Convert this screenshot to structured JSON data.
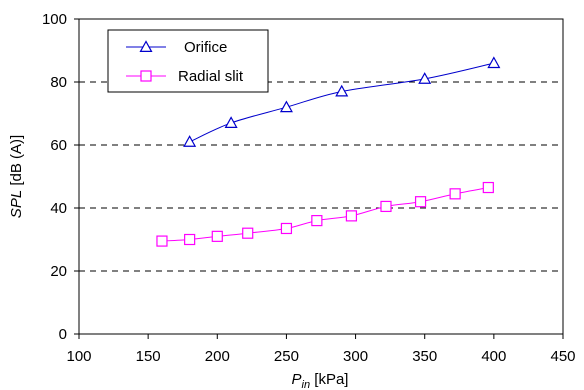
{
  "chart_data": {
    "type": "line",
    "xlabel": {
      "symbol": "P",
      "subscript": "in",
      "unit": "[kPa]"
    },
    "ylabel": {
      "symbol": "SPL",
      "unit": "[dB (A)]"
    },
    "xlim": [
      100,
      450
    ],
    "ylim": [
      0,
      100
    ],
    "xticks": [
      "100",
      "150",
      "200",
      "250",
      "300",
      "350",
      "400",
      "450"
    ],
    "yticks": [
      "0",
      "20",
      "40",
      "60",
      "80",
      "100"
    ],
    "grid": "horizontal dashed",
    "legend_position": "top-left",
    "series": [
      {
        "name": "Orifice",
        "marker": "triangle",
        "color": "#0000cc",
        "points": [
          [
            180,
            61
          ],
          [
            210,
            67
          ],
          [
            250,
            72
          ],
          [
            290,
            77
          ],
          [
            350,
            81
          ],
          [
            400,
            86
          ]
        ]
      },
      {
        "name": "Radial slit",
        "marker": "square",
        "color": "#ff00ff",
        "points": [
          [
            160,
            29.5
          ],
          [
            180,
            30
          ],
          [
            200,
            31
          ],
          [
            222,
            32
          ],
          [
            250,
            33.5
          ],
          [
            272,
            36
          ],
          [
            297,
            37.5
          ],
          [
            322,
            40.5
          ],
          [
            347,
            42
          ],
          [
            372,
            44.5
          ],
          [
            396,
            46.5
          ]
        ]
      }
    ]
  }
}
